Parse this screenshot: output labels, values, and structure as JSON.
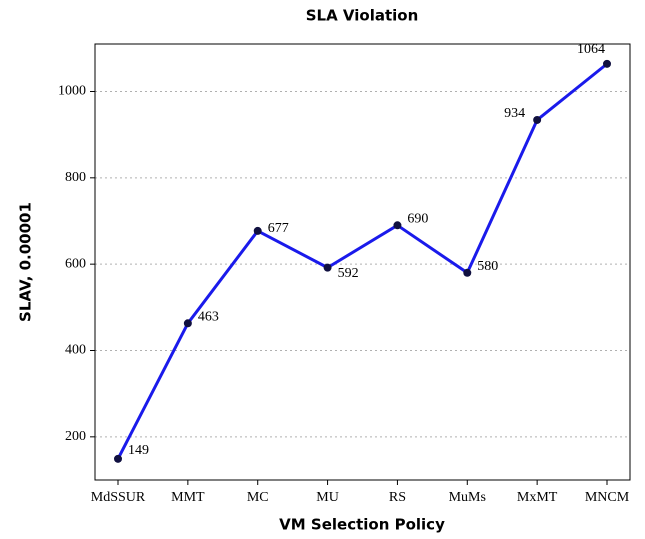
{
  "chart_data": {
    "type": "line",
    "title": "SLA Violation",
    "x_label": "VM Selection Policy",
    "y_label": "SLAV, 0.00001",
    "categories": [
      "MdSSUR",
      "MMT",
      "MC",
      "MU",
      "RS",
      "MuMs",
      "MxMT",
      "MNCM"
    ],
    "values": [
      149,
      463,
      677,
      592,
      690,
      580,
      934,
      1064
    ],
    "color": "#1a1aeb",
    "marker_color": "#101040",
    "ylim": [
      100,
      1110
    ],
    "yticks": [
      200,
      400,
      600,
      800,
      1000
    ],
    "grid": true
  }
}
